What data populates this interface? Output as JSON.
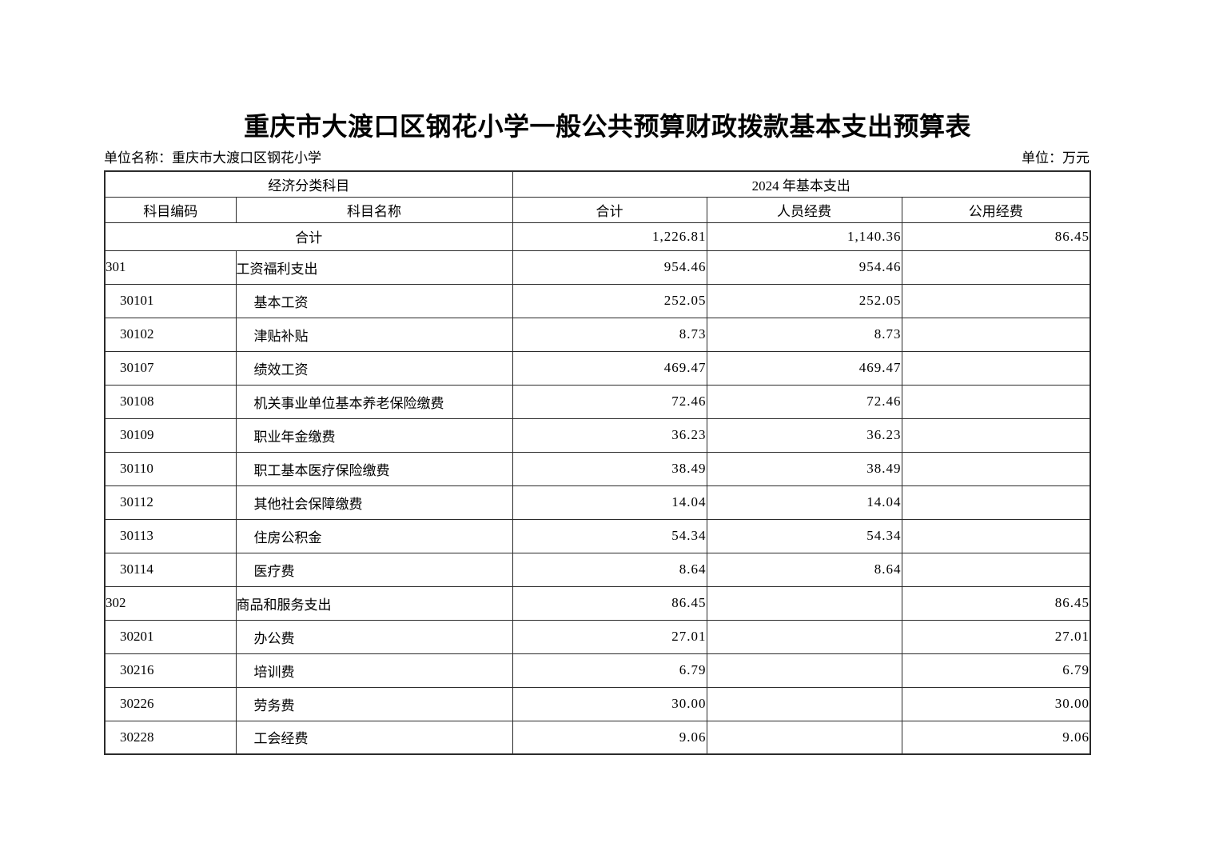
{
  "title": "重庆市大渡口区钢花小学一般公共预算财政拨款基本支出预算表",
  "unit_name": "单位名称：重庆市大渡口区钢花小学",
  "unit": "单位：万元",
  "table": {
    "header": {
      "group_left": "经济分类科目",
      "group_right": "2024 年基本支出",
      "columns": [
        "科目编码",
        "科目名称",
        "合计",
        "人员经费",
        "公用经费"
      ]
    },
    "total_row": {
      "label": "合计",
      "total": "1,226.81",
      "personnel": "1,140.36",
      "public": "86.45"
    },
    "rows": [
      {
        "code": "301",
        "name": "工资福利支出",
        "level": 0,
        "total": "954.46",
        "personnel": "954.46",
        "public": ""
      },
      {
        "code": "30101",
        "name": "基本工资",
        "level": 1,
        "total": "252.05",
        "personnel": "252.05",
        "public": ""
      },
      {
        "code": "30102",
        "name": "津贴补贴",
        "level": 1,
        "total": "8.73",
        "personnel": "8.73",
        "public": ""
      },
      {
        "code": "30107",
        "name": "绩效工资",
        "level": 1,
        "total": "469.47",
        "personnel": "469.47",
        "public": ""
      },
      {
        "code": "30108",
        "name": "机关事业单位基本养老保险缴费",
        "level": 1,
        "total": "72.46",
        "personnel": "72.46",
        "public": ""
      },
      {
        "code": "30109",
        "name": "职业年金缴费",
        "level": 1,
        "total": "36.23",
        "personnel": "36.23",
        "public": ""
      },
      {
        "code": "30110",
        "name": "职工基本医疗保险缴费",
        "level": 1,
        "total": "38.49",
        "personnel": "38.49",
        "public": ""
      },
      {
        "code": "30112",
        "name": "其他社会保障缴费",
        "level": 1,
        "total": "14.04",
        "personnel": "14.04",
        "public": ""
      },
      {
        "code": "30113",
        "name": "住房公积金",
        "level": 1,
        "total": "54.34",
        "personnel": "54.34",
        "public": ""
      },
      {
        "code": "30114",
        "name": "医疗费",
        "level": 1,
        "total": "8.64",
        "personnel": "8.64",
        "public": ""
      },
      {
        "code": "302",
        "name": "商品和服务支出",
        "level": 0,
        "total": "86.45",
        "personnel": "",
        "public": "86.45"
      },
      {
        "code": "30201",
        "name": "办公费",
        "level": 1,
        "total": "27.01",
        "personnel": "",
        "public": "27.01"
      },
      {
        "code": "30216",
        "name": "培训费",
        "level": 1,
        "total": "6.79",
        "personnel": "",
        "public": "6.79"
      },
      {
        "code": "30226",
        "name": "劳务费",
        "level": 1,
        "total": "30.00",
        "personnel": "",
        "public": "30.00"
      },
      {
        "code": "30228",
        "name": "工会经费",
        "level": 1,
        "total": "9.06",
        "personnel": "",
        "public": "9.06"
      }
    ]
  }
}
